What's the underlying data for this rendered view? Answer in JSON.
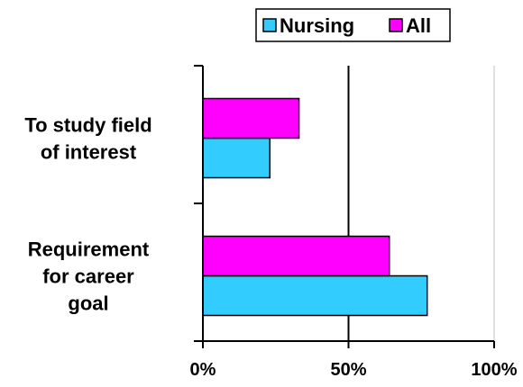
{
  "chart_data": {
    "type": "bar",
    "orientation": "horizontal",
    "categories": [
      "To study field of interest",
      "Requirement for career goal"
    ],
    "category_lines": [
      [
        "To study field",
        "of interest"
      ],
      [
        "Requirement",
        "for career",
        "goal"
      ]
    ],
    "series": [
      {
        "name": "Nursing",
        "color": "#33CCFF",
        "values": [
          23,
          77
        ]
      },
      {
        "name": "All",
        "color": "#FF00FF",
        "values": [
          33,
          64
        ]
      }
    ],
    "xlim": [
      0,
      100
    ],
    "xticks": [
      "0%",
      "50%",
      "100%"
    ],
    "xtick_values": [
      0,
      50,
      100
    ],
    "legend_placement": "top",
    "grid": "vertical lines at 50% and 100%"
  }
}
